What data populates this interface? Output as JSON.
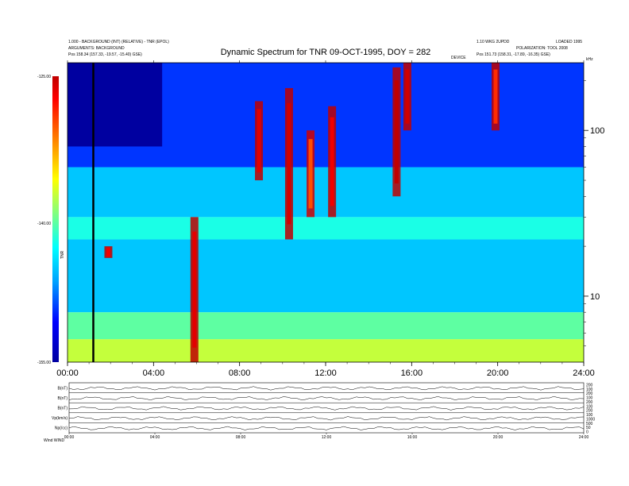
{
  "chart_data": {
    "type": "heatmap",
    "title": "Dynamic Spectrum for TNR 09-OCT-1995, DOY = 282",
    "header": {
      "left_line1": "1.000 - BACKGROUND (INT) (RELATIVE) - TNR (EPOL)",
      "left_line2": "ARGUMENTS: BACKGROUND",
      "left_line3": "Pos    158.34 (157.33, -19.57, -15.40) GSE)",
      "right_line1": "1.10 WKG 2UPDD",
      "right_line2": "LOADED 1995",
      "right_line3": "POLARIZATION: TOOL 2008",
      "right_line4": "Pos    151.73 (158.31, -17.89, -16.35) GSE)",
      "center_tag": "DEVICE",
      "freq_unit": "kHz"
    },
    "x_axis": {
      "ticks": [
        "00:00",
        "04:00",
        "08:00",
        "12:00",
        "16:00",
        "20:00",
        "24:00"
      ],
      "range_hours": [
        0,
        24
      ]
    },
    "y_axis": {
      "scale": "log",
      "range_khz": [
        4,
        256
      ],
      "ticks": [
        10,
        100
      ],
      "tick_labels": [
        "10",
        "100"
      ]
    },
    "colorbar": {
      "label": "TNR",
      "range": [
        -155,
        -125
      ],
      "tick_labels": [
        "-125.00",
        "-140.00",
        "-155.00"
      ],
      "colors": [
        "#0000a0",
        "#0000ff",
        "#00a0ff",
        "#00ffff",
        "#80ff80",
        "#ffff00",
        "#ff8000",
        "#ff0000",
        "#c00000"
      ]
    },
    "vertical_marker_hour": 1.2,
    "bands": [
      {
        "from_khz": 4,
        "to_khz": 5.5,
        "level": -138
      },
      {
        "from_khz": 5.5,
        "to_khz": 8,
        "level": -141
      },
      {
        "from_khz": 8,
        "to_khz": 22,
        "level": -146
      },
      {
        "from_khz": 22,
        "to_khz": 30,
        "level": -143
      },
      {
        "from_khz": 30,
        "to_khz": 60,
        "level": -146
      },
      {
        "from_khz": 60,
        "to_khz": 256,
        "level": -150
      }
    ],
    "quiet_region": {
      "hour_from": 0,
      "hour_to": 4.4,
      "khz_from": 80,
      "khz_to": 256,
      "level": -155
    },
    "events": [
      {
        "hour": 1.9,
        "khz_from": 17,
        "khz_to": 20,
        "level": -128
      },
      {
        "hour": 5.9,
        "khz_from": 4,
        "khz_to": 30,
        "level": -127
      },
      {
        "hour": 8.9,
        "khz_from": 50,
        "khz_to": 150,
        "level": -127
      },
      {
        "hour": 10.3,
        "khz_from": 22,
        "khz_to": 180,
        "level": -126
      },
      {
        "hour": 11.3,
        "khz_from": 30,
        "khz_to": 100,
        "level": -131
      },
      {
        "hour": 12.3,
        "khz_from": 30,
        "khz_to": 140,
        "level": -128
      },
      {
        "hour": 15.3,
        "khz_from": 40,
        "khz_to": 240,
        "level": -125
      },
      {
        "hour": 15.8,
        "khz_from": 100,
        "khz_to": 256,
        "level": -126
      },
      {
        "hour": 19.9,
        "khz_from": 100,
        "khz_to": 256,
        "level": -130
      }
    ],
    "bottom_panels": {
      "row_labels": [
        "B(nT)",
        "B(nT)",
        "B(nT)",
        "Vp(km/s)",
        "Np(/cc)"
      ],
      "right_labels": [
        "200",
        "100",
        "200",
        "100",
        "200",
        "100",
        "200",
        "100",
        "1000",
        "500",
        "50",
        "0"
      ],
      "x_ticks": [
        "00:00",
        "04:00",
        "08:00",
        "12:00",
        "16:00",
        "20:00",
        "24:00"
      ],
      "corner_label": "Wind  WIND"
    }
  }
}
